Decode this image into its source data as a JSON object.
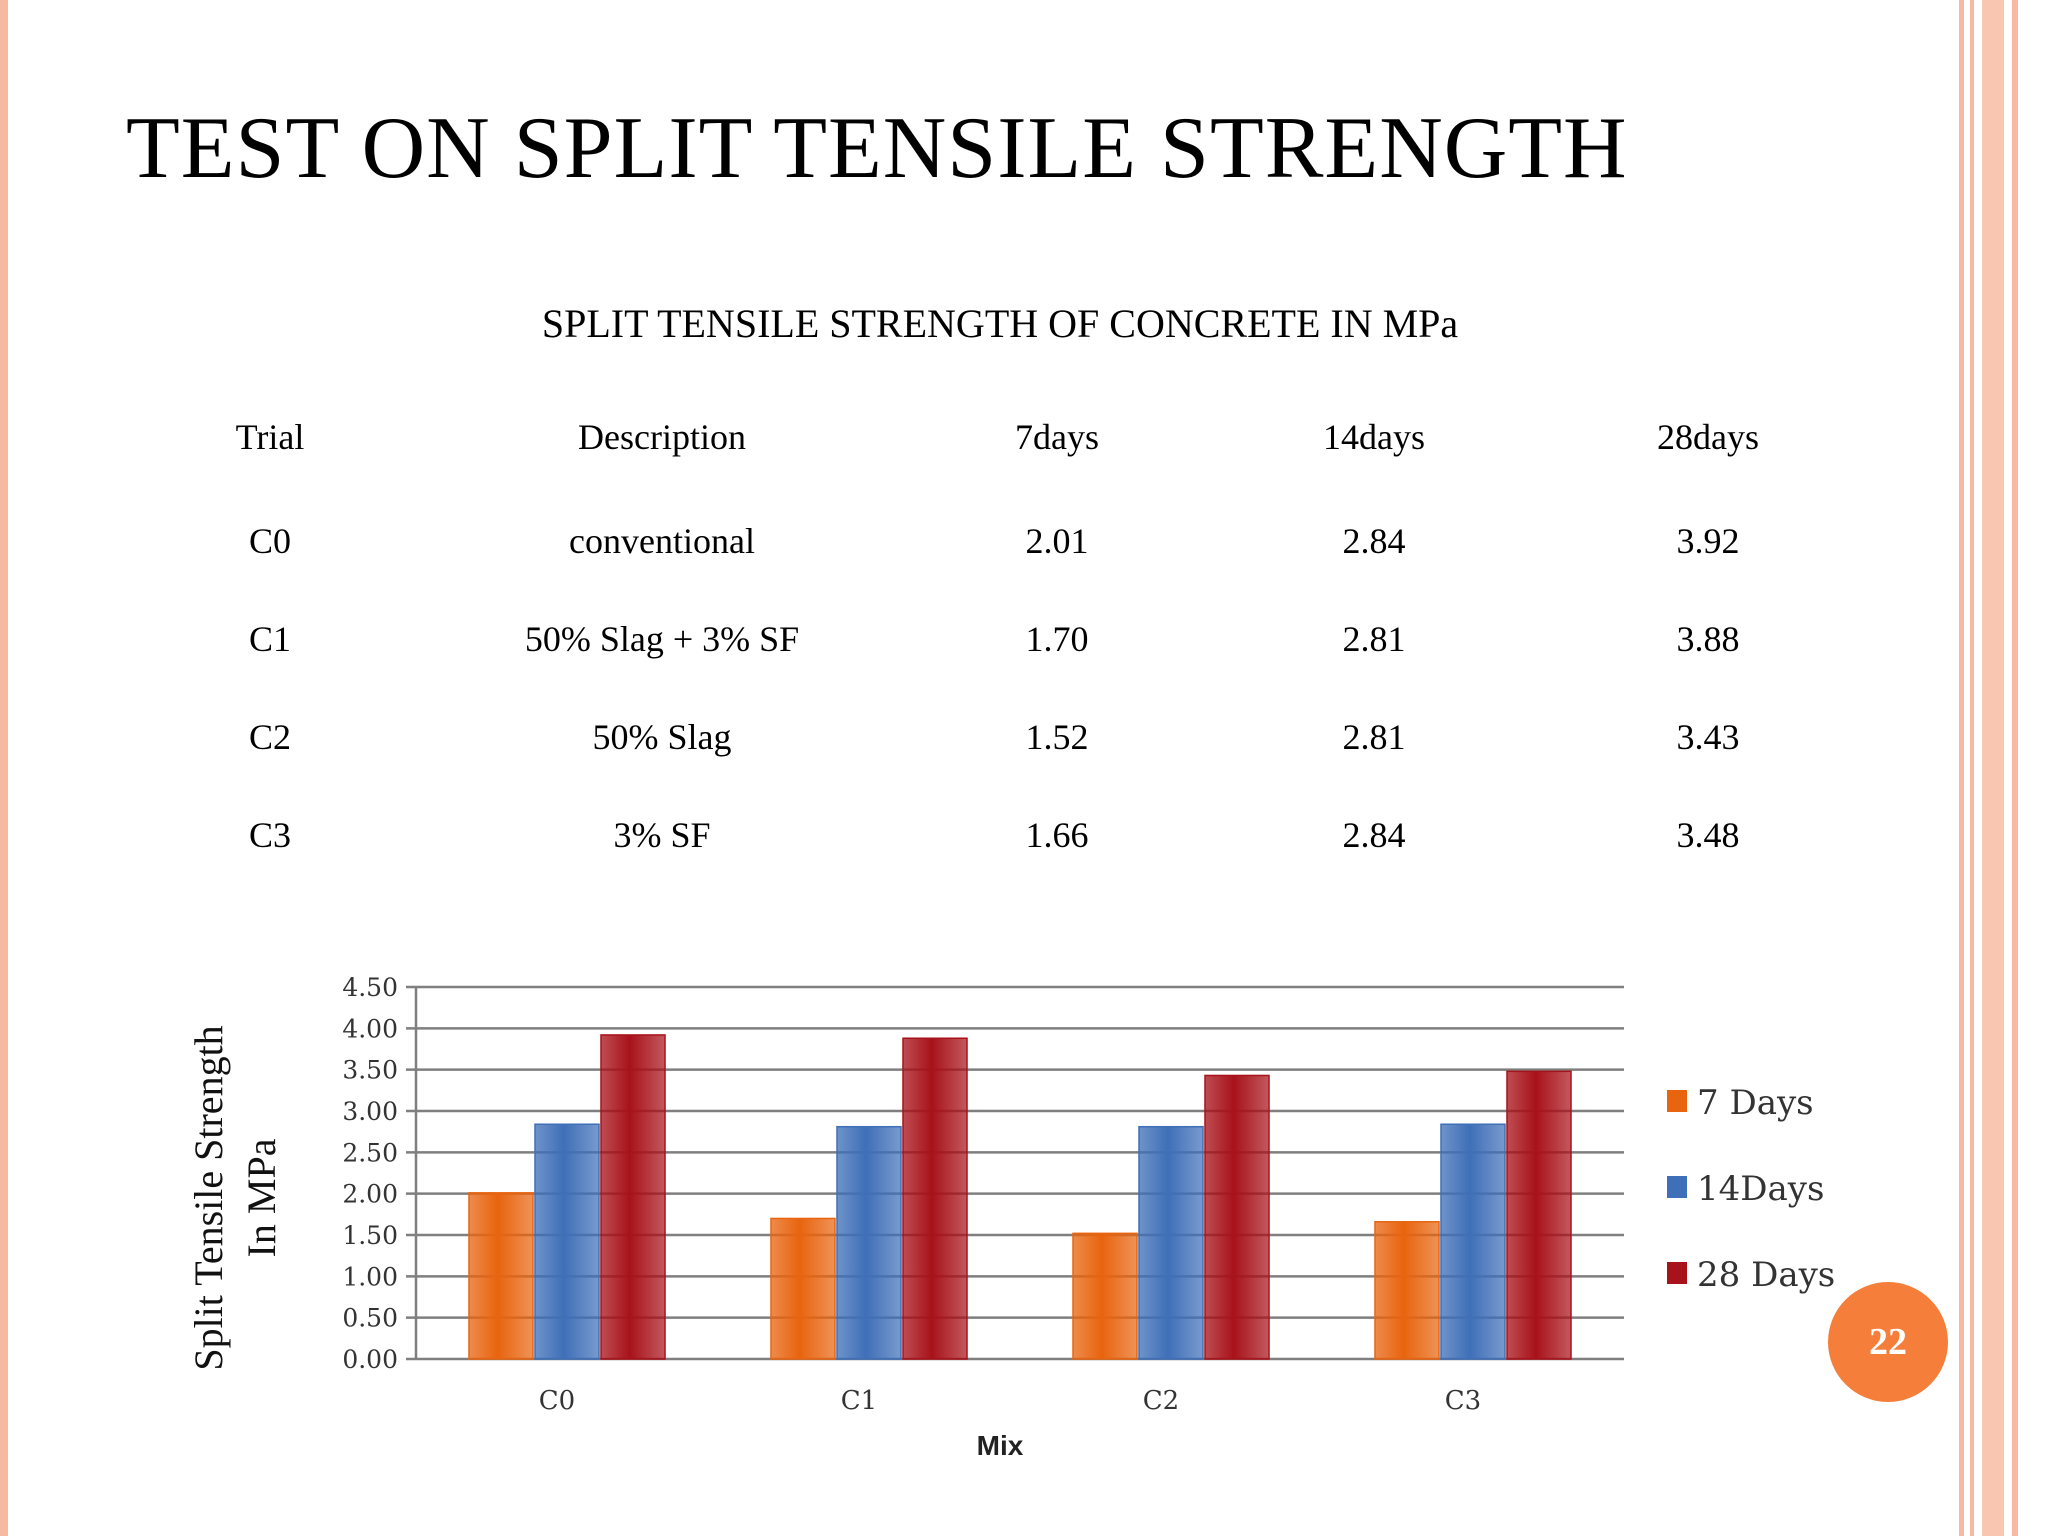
{
  "slide": {
    "title": "TEST ON SPLIT TENSILE STRENGTH",
    "page_number": "22",
    "border_color": "#f7b9a1",
    "badge_color": "#f57f3a"
  },
  "table": {
    "caption": "SPLIT TENSILE STRENGTH OF CONCRETE IN MPa",
    "headers": [
      "Trial",
      "Description",
      "7days",
      "14days",
      "28days"
    ],
    "rows": [
      [
        "C0",
        "conventional",
        "2.01",
        "2.84",
        "3.92"
      ],
      [
        "C1",
        "50% Slag + 3% SF",
        "1.70",
        "2.81",
        "3.88"
      ],
      [
        "C2",
        "50% Slag",
        "1.52",
        "2.81",
        "3.43"
      ],
      [
        "C3",
        "3% SF",
        "1.66",
        "2.84",
        "3.48"
      ]
    ]
  },
  "chart_data": {
    "type": "bar",
    "categories": [
      "C0",
      "C1",
      "C2",
      "C3"
    ],
    "series": [
      {
        "name": "7 Days",
        "values": [
          2.01,
          1.7,
          1.52,
          1.66
        ],
        "color": "#e8640f"
      },
      {
        "name": "14Days",
        "values": [
          2.84,
          2.81,
          2.81,
          2.84
        ],
        "color": "#3f6fb8"
      },
      {
        "name": "28 Days",
        "values": [
          3.92,
          3.88,
          3.43,
          3.48
        ],
        "color": "#a8121a"
      }
    ],
    "title": "",
    "xlabel": "Mix",
    "ylabel": "Split Tensile Strength In MPa",
    "ylabel_lines": [
      "Split Tensile Strength",
      "In MPa"
    ],
    "ylim": [
      0,
      4.5
    ],
    "yticks": [
      "0.00",
      "0.50",
      "1.00",
      "1.50",
      "2.00",
      "2.50",
      "3.00",
      "3.50",
      "4.00",
      "4.50"
    ],
    "grid": true,
    "legend_position": "right"
  }
}
